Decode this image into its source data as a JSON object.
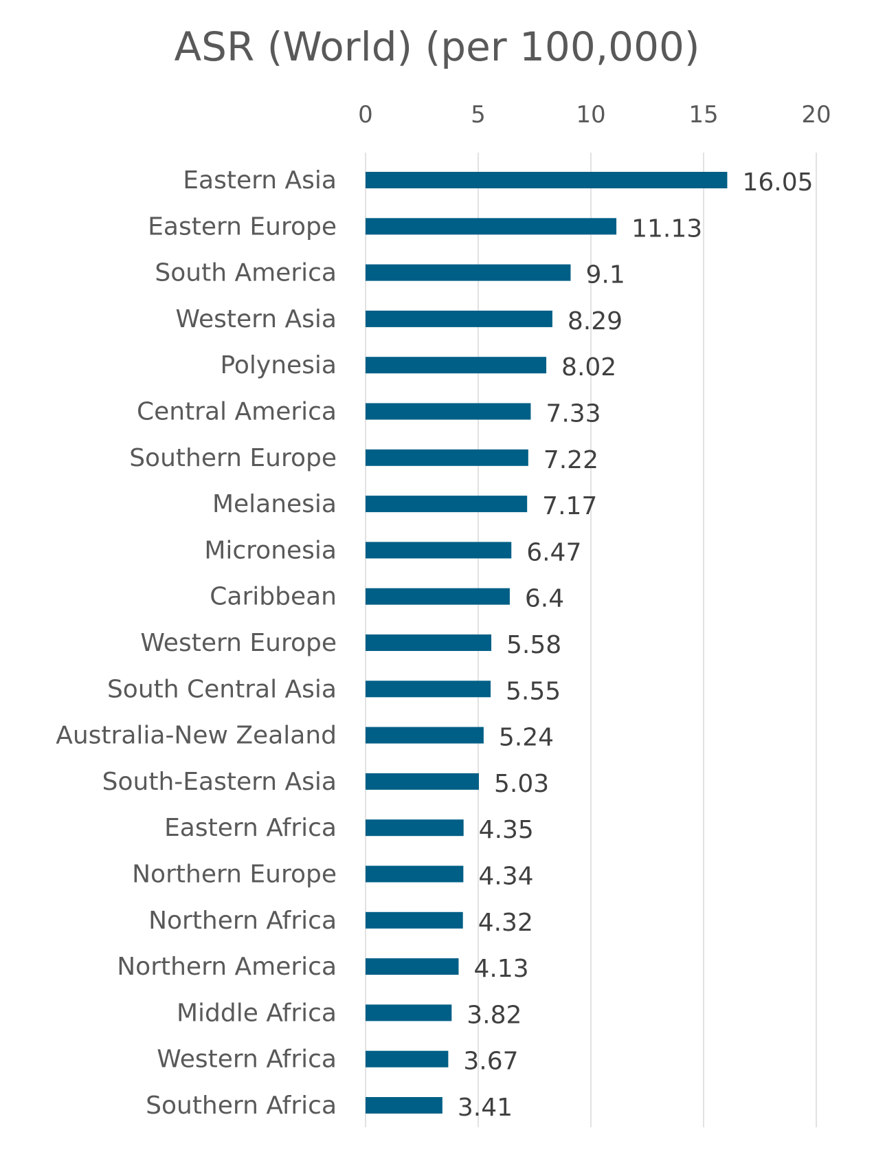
{
  "chart_data": {
    "type": "bar",
    "orientation": "horizontal",
    "title": "ASR (World) (per 100,000)",
    "xlabel": "",
    "ylabel": "",
    "xlim": [
      0,
      20
    ],
    "x_ticks": [
      "0",
      "5",
      "10",
      "15",
      "20"
    ],
    "x_tick_values": [
      0,
      5,
      10,
      15,
      20
    ],
    "axis_position": "top",
    "grid": true,
    "legend": "none",
    "bar_color": "#005f86",
    "categories": [
      "Eastern Asia",
      "Eastern Europe",
      "South America",
      "Western Asia",
      "Polynesia",
      "Central America",
      "Southern Europe",
      "Melanesia",
      "Micronesia",
      "Caribbean",
      "Western Europe",
      "South Central Asia",
      "Australia-New Zealand",
      "South-Eastern Asia",
      "Eastern Africa",
      "Northern Europe",
      "Northern Africa",
      "Northern America",
      "Middle Africa",
      "Western Africa",
      "Southern Africa"
    ],
    "values": [
      16.05,
      11.13,
      9.1,
      8.29,
      8.02,
      7.33,
      7.22,
      7.17,
      6.47,
      6.4,
      5.58,
      5.55,
      5.24,
      5.03,
      4.35,
      4.34,
      4.32,
      4.13,
      3.82,
      3.67,
      3.41
    ],
    "value_labels": [
      "16.05",
      "11.13",
      "9.1",
      "8.29",
      "8.02",
      "7.33",
      "7.22",
      "7.17",
      "6.47",
      "6.4",
      "5.58",
      "5.55",
      "5.24",
      "5.03",
      "4.35",
      "4.34",
      "4.32",
      "4.13",
      "3.82",
      "3.67",
      "3.41"
    ]
  }
}
